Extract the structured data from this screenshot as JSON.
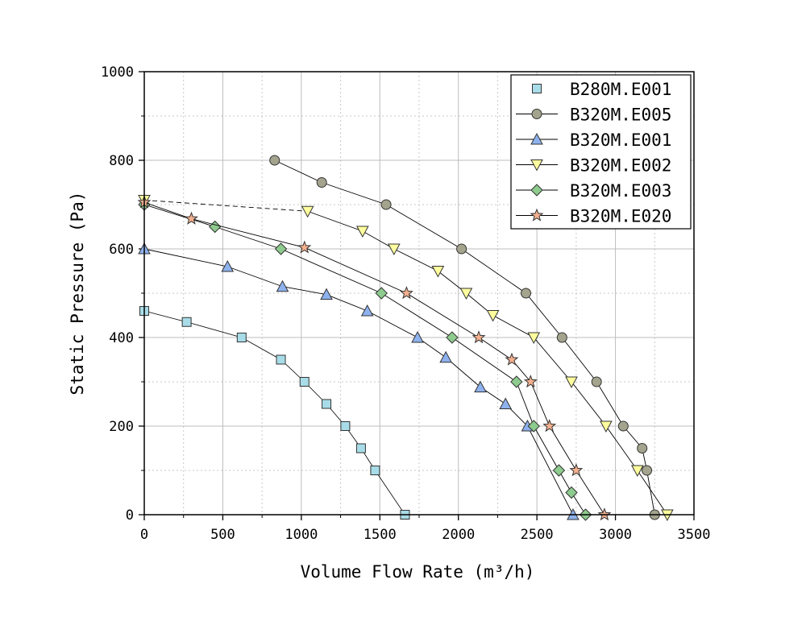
{
  "chart_data": {
    "type": "line",
    "title": "",
    "xlabel": "Volume Flow Rate (m³/h)",
    "ylabel": "Static Pressure (Pa)",
    "xlim": [
      0,
      3500
    ],
    "ylim": [
      0,
      1000
    ],
    "xticks": [
      0,
      500,
      1000,
      1500,
      2000,
      2500,
      3000,
      3500
    ],
    "yticks": [
      0,
      200,
      400,
      600,
      800,
      1000
    ],
    "grid": true,
    "legend_position": "top-right",
    "series": [
      {
        "name": "B280M.E001",
        "marker": "square",
        "color": "#a8dce8",
        "line": "none",
        "x": [
          0,
          270,
          620,
          870,
          1020,
          1160,
          1280,
          1380,
          1470,
          1660
        ],
        "y": [
          460,
          435,
          400,
          350,
          300,
          250,
          200,
          150,
          100,
          0
        ]
      },
      {
        "name": "B320M.E005",
        "marker": "circle",
        "color": "#a4a48e",
        "line": "solid",
        "x": [
          830,
          1130,
          1540,
          2020,
          2430,
          2660,
          2880,
          3050,
          3170,
          3200,
          3250
        ],
        "y": [
          800,
          750,
          700,
          600,
          500,
          400,
          300,
          200,
          150,
          100,
          0
        ]
      },
      {
        "name": "B320M.E001",
        "marker": "triangle-up",
        "color": "#8eb2ee",
        "line": "solid",
        "x": [
          0,
          530,
          880,
          1160,
          1420,
          1740,
          1920,
          2140,
          2300,
          2440,
          2730
        ],
        "y": [
          600,
          560,
          515,
          497,
          460,
          400,
          355,
          288,
          250,
          200,
          0
        ]
      },
      {
        "name": "B320M.E002",
        "marker": "triangle-down",
        "color": "#fefe9e",
        "line": "solid",
        "x": [
          0,
          1040,
          1390,
          1590,
          1870,
          2050,
          2220,
          2480,
          2720,
          2940,
          3140,
          3330
        ],
        "y": [
          710,
          685,
          640,
          600,
          550,
          500,
          450,
          400,
          300,
          200,
          100,
          0
        ]
      },
      {
        "name": "B320M.E003",
        "marker": "diamond",
        "color": "#8ecb8e",
        "line": "solid",
        "x": [
          0,
          450,
          870,
          1510,
          1960,
          2370,
          2480,
          2640,
          2720,
          2810
        ],
        "y": [
          700,
          650,
          600,
          500,
          400,
          300,
          200,
          100,
          50,
          0
        ]
      },
      {
        "name": "B320M.E020",
        "marker": "star",
        "color": "#f4b08e",
        "line": "solid",
        "x": [
          0,
          300,
          1020,
          1670,
          2130,
          2340,
          2460,
          2580,
          2750,
          2930
        ],
        "y": [
          705,
          668,
          603,
          500,
          400,
          350,
          300,
          200,
          100,
          0
        ]
      }
    ]
  }
}
